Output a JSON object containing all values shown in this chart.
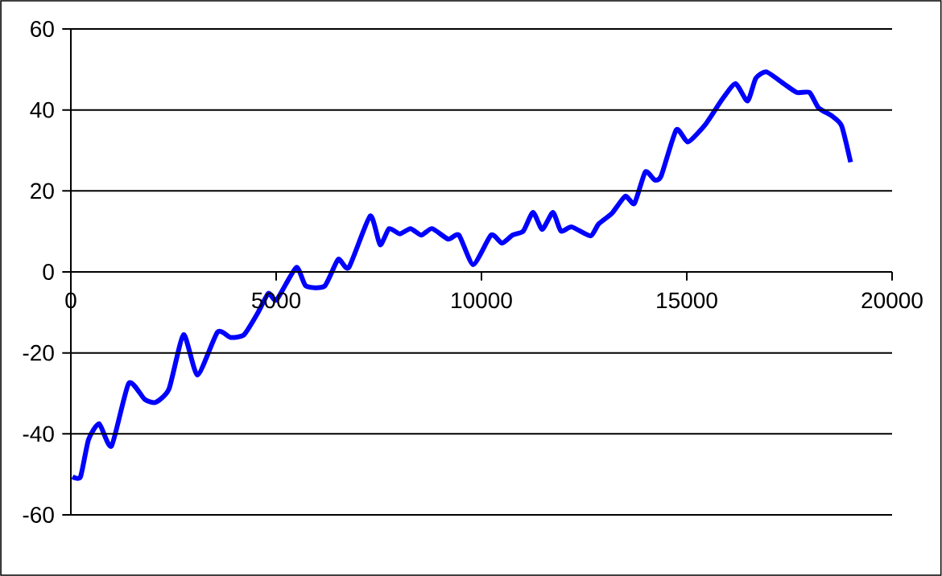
{
  "chart_data": {
    "type": "line",
    "x": [
      40,
      235,
      430,
      690,
      990,
      1410,
      1800,
      2070,
      2390,
      2745,
      3085,
      3570,
      3895,
      4220,
      4550,
      4810,
      5010,
      5490,
      5725,
      6180,
      6510,
      6770,
      7290,
      7530,
      7750,
      8010,
      8270,
      8535,
      8795,
      9190,
      9450,
      9800,
      10235,
      10500,
      10760,
      11020,
      11255,
      11480,
      11740,
      11935,
      12200,
      12655,
      12850,
      13180,
      13500,
      13725,
      13990,
      14220,
      14380,
      14745,
      15030,
      15460,
      15855,
      16185,
      16480,
      16680,
      16940,
      17360,
      17685,
      17990,
      18210,
      18535,
      18770,
      18990
    ],
    "series": [
      {
        "color": "#0000ff",
        "values": [
          -50.6,
          -50.6,
          -41.4,
          -37.5,
          -43,
          -27.5,
          -31.5,
          -32.2,
          -28.9,
          -15.5,
          -25.5,
          -14.9,
          -16.2,
          -15.5,
          -10.2,
          -5.3,
          -6.9,
          1.1,
          -3.5,
          -3.5,
          3.1,
          1.1,
          13.8,
          6.7,
          10.7,
          9.4,
          10.7,
          9.1,
          10.7,
          8.1,
          9.1,
          1.8,
          9.1,
          7.1,
          9.1,
          10.1,
          14.7,
          10.5,
          14.7,
          10.1,
          11.1,
          8.9,
          11.8,
          14.5,
          18.7,
          16.9,
          24.7,
          22.7,
          23.8,
          35.1,
          32.1,
          36.5,
          42.5,
          46.5,
          42.2,
          47.8,
          49.4,
          46.5,
          44.3,
          44.3,
          40.5,
          38.5,
          36.1,
          27.1
        ]
      }
    ],
    "xlim": [
      0,
      20000
    ],
    "xticks": [
      0,
      5000,
      10000,
      15000,
      20000
    ],
    "ylim": [
      -60,
      60
    ],
    "yticks": [
      -60,
      -40,
      -20,
      0,
      20,
      40,
      60
    ],
    "grid": "y",
    "marker": "none",
    "line_style": "solid"
  }
}
